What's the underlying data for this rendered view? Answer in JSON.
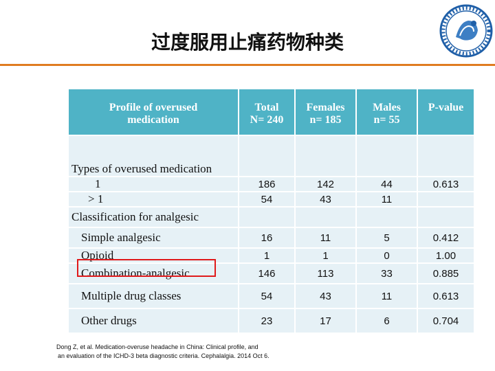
{
  "title": "过度服用止痛药物种类",
  "table": {
    "headers": [
      {
        "line1": "Profile of overused",
        "line2": "medication"
      },
      {
        "line1": "Total",
        "line2": "N= 240"
      },
      {
        "line1": "Females",
        "line2": "n= 185"
      },
      {
        "line1": "Males",
        "line2": "n= 55"
      },
      {
        "line1": "P-value",
        "line2": ""
      }
    ],
    "rows": [
      {
        "label": "Types of overused medication",
        "total": "",
        "females": "",
        "males": "",
        "p": ""
      },
      {
        "label": "1",
        "total": "186",
        "females": "142",
        "males": "44",
        "p": "0.613"
      },
      {
        "label": "> 1",
        "total": "54",
        "females": "43",
        "males": "11",
        "p": ""
      },
      {
        "label": "Classification for analgesic",
        "total": "",
        "females": "",
        "males": "",
        "p": ""
      },
      {
        "label": "Simple analgesic",
        "total": "16",
        "females": "11",
        "males": "5",
        "p": "0.412"
      },
      {
        "label": "Opioid",
        "total": "1",
        "females": "1",
        "males": "0",
        "p": "1.00"
      },
      {
        "label": "Combination-analgesic",
        "total": "146",
        "females": "113",
        "males": "33",
        "p": "0.885"
      },
      {
        "label": "Multiple drug classes",
        "total": "54",
        "females": "43",
        "males": "11",
        "p": "0.613"
      },
      {
        "label": "Other drugs",
        "total": "23",
        "females": "17",
        "males": "6",
        "p": "0.704"
      }
    ]
  },
  "citation": {
    "line1": "Dong Z, et al. Medication-overuse headache in China: Clinical profile, and",
    "line2": "an evaluation of the ICHD-3 beta diagnostic criteria. Cephalalgia. 2014 Oct 6."
  },
  "colors": {
    "header": "#4fb3c6",
    "row": "#e6f1f6",
    "accent": "#e07c20",
    "highlight": "#e0191a"
  },
  "logo_icon": "society-seal-icon"
}
